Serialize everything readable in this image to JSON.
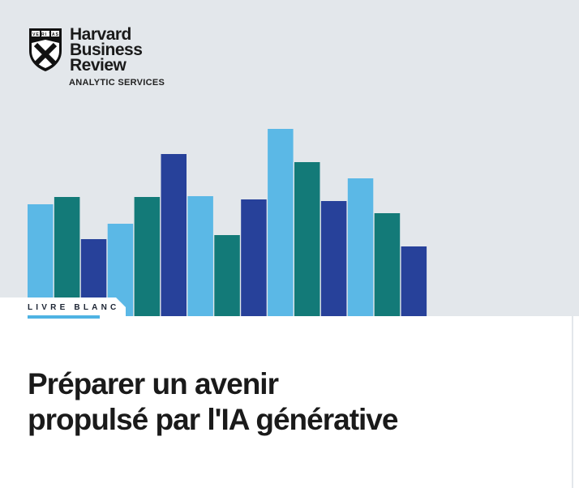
{
  "brand": {
    "line1": "Harvard",
    "line2": "Business",
    "line3": "Review",
    "subtitle": "ANALYTIC SERVICES",
    "shield_text": "VE RI TAS"
  },
  "colors": {
    "background": "#e3e7eb",
    "light_blue": "#5bb8e6",
    "teal": "#137a78",
    "navy": "#27419a",
    "accent": "#4fb3e3"
  },
  "label": "LIVRE BLANC",
  "title": {
    "line1": "Préparer un avenir",
    "line2": "propulsé par l'IA générative"
  }
}
